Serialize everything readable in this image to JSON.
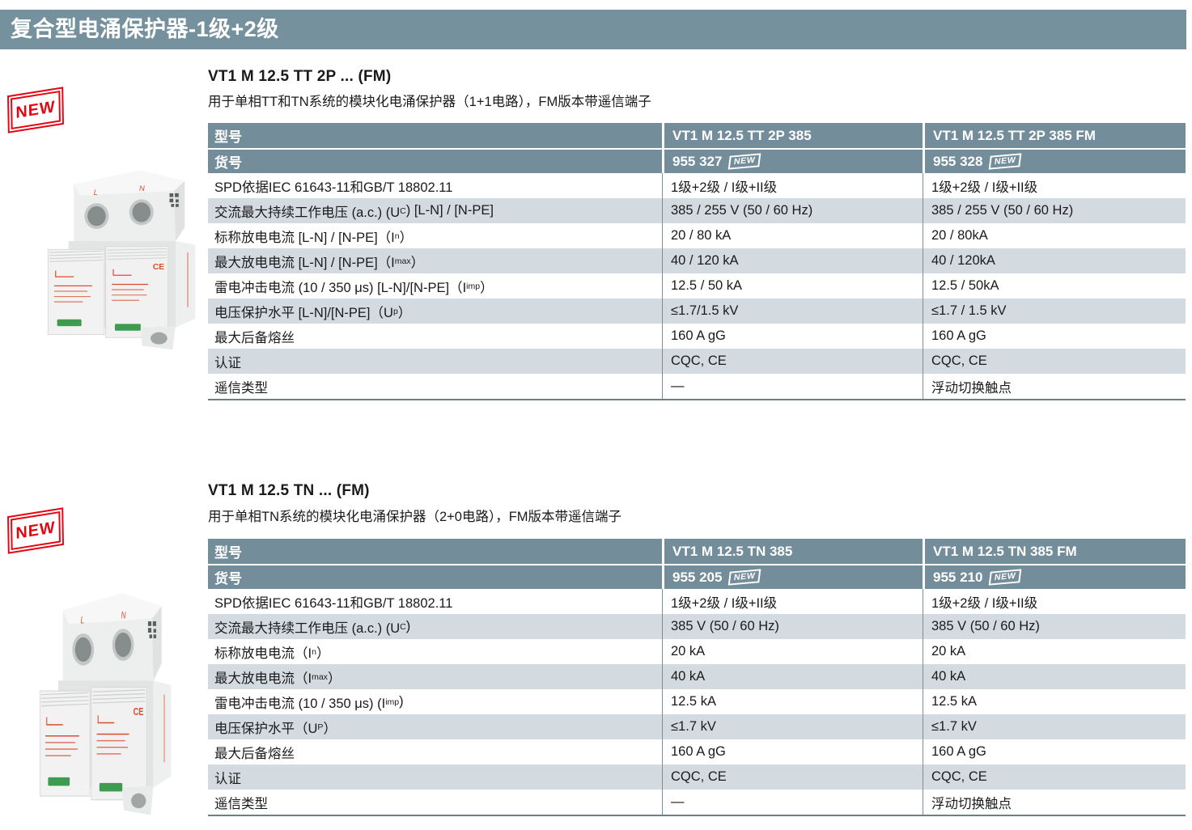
{
  "banner": "复合型电涌保护器-1级+2级",
  "colors": {
    "banner": "#76919E",
    "head": "#748D9A",
    "stripe": "#D4DBE0",
    "red": "#E30613",
    "border": "#6E7E88",
    "green": "#3F9B50",
    "devred": "#D9502F"
  },
  "sections": [
    {
      "new_badge": "NEW",
      "title": "VT1 M 12.5 TT 2P ... (FM)",
      "description": "用于单相TT和TN系统的模块化电涌保护器（1+1电路），FM版本带遥信端子",
      "photo": {
        "terminals": [
          "L",
          "N"
        ]
      },
      "table": {
        "model_row": {
          "label": "型号",
          "values": [
            "VT1 M 12.5 TT 2P 385",
            "VT1 M 12.5 TT 2P 385 FM"
          ]
        },
        "article_row": {
          "label": "货号",
          "values": [
            "955 327",
            "955 328"
          ],
          "badge": "NEW"
        },
        "rows": [
          {
            "label": [
              {
                "t": "SPD依据IEC 61643-11和GB/T 18802.11"
              }
            ],
            "values": [
              "1级+2级 / I级+II级",
              "1级+2级 / I级+II级"
            ]
          },
          {
            "label": [
              {
                "t": "交流最大持续工作电压 (a.c.)  (U"
              },
              {
                "sub": "C"
              },
              {
                "t": ") [L-N] / [N-PE]"
              }
            ],
            "values": [
              "385 / 255 V (50 / 60 Hz)",
              "385 / 255 V (50 / 60 Hz)"
            ]
          },
          {
            "label": [
              {
                "t": "标称放电电流 [L-N] / [N-PE]（I"
              },
              {
                "sub": "n"
              },
              {
                "t": "）"
              }
            ],
            "values": [
              "20 / 80 kA",
              "20 / 80kA"
            ]
          },
          {
            "label": [
              {
                "t": "最大放电电流 [L-N] / [N-PE]（I"
              },
              {
                "sub": "max"
              },
              {
                "t": "）"
              }
            ],
            "values": [
              "40 / 120 kA",
              "40 / 120kA"
            ]
          },
          {
            "label": [
              {
                "t": "雷电冲击电流 (10 / 350 μs) [L-N]/[N-PE]（I"
              },
              {
                "sub": "imp"
              },
              {
                "t": "）"
              }
            ],
            "values": [
              "12.5 / 50 kA",
              "12.5 / 50kA"
            ]
          },
          {
            "label": [
              {
                "t": "电压保护水平 [L-N]/[N-PE]（U"
              },
              {
                "sub": "p"
              },
              {
                "t": "）"
              }
            ],
            "values": [
              "≤1.7/1.5 kV",
              "≤1.7 / 1.5 kV"
            ]
          },
          {
            "label": [
              {
                "t": "最大后备熔丝"
              }
            ],
            "values": [
              "160 A gG",
              "160 A gG"
            ]
          },
          {
            "label": [
              {
                "t": "认证"
              }
            ],
            "values": [
              "CQC, CE",
              "CQC, CE"
            ]
          },
          {
            "label": [
              {
                "t": "遥信类型"
              }
            ],
            "values": [
              "—",
              "浮动切换触点"
            ]
          }
        ]
      }
    },
    {
      "new_badge": "NEW",
      "title": "VT1 M 12.5 TN ... (FM)",
      "description": "用于单相TN系统的模块化电涌保护器（2+0电路），FM版本带遥信端子",
      "photo": {
        "terminals": [
          "L",
          "N"
        ]
      },
      "table": {
        "model_row": {
          "label": "型号",
          "values": [
            "VT1 M 12.5 TN 385",
            "VT1 M 12.5 TN 385 FM"
          ]
        },
        "article_row": {
          "label": "货号",
          "values": [
            "955 205",
            "955 210"
          ],
          "badge": "NEW"
        },
        "rows": [
          {
            "label": [
              {
                "t": "SPD依据IEC 61643-11和GB/T 18802.11"
              }
            ],
            "values": [
              "1级+2级 / I级+II级",
              "1级+2级 / I级+II级"
            ]
          },
          {
            "label": [
              {
                "t": "交流最大持续工作电压 (a.c.)  (U"
              },
              {
                "sub": "C"
              },
              {
                "t": ")"
              }
            ],
            "values": [
              "385 V (50 / 60 Hz)",
              "385 V (50 / 60 Hz)"
            ]
          },
          {
            "label": [
              {
                "t": "标称放电电流（I"
              },
              {
                "sub": "n"
              },
              {
                "t": "）"
              }
            ],
            "values": [
              "20 kA",
              "20 kA"
            ]
          },
          {
            "label": [
              {
                "t": "最大放电电流（I"
              },
              {
                "sub": "max"
              },
              {
                "t": "）"
              }
            ],
            "values": [
              "40 kA",
              "40 kA"
            ]
          },
          {
            "label": [
              {
                "t": "雷电冲击电流 (10 / 350 μs) (I"
              },
              {
                "sub": "imp"
              },
              {
                "t": ")"
              }
            ],
            "values": [
              "12.5 kA",
              "12.5 kA"
            ]
          },
          {
            "label": [
              {
                "t": "电压保护水平（U"
              },
              {
                "sub": "P"
              },
              {
                "t": "）"
              }
            ],
            "values": [
              "≤1.7 kV",
              "≤1.7 kV"
            ]
          },
          {
            "label": [
              {
                "t": "最大后备熔丝"
              }
            ],
            "values": [
              "160 A gG",
              "160 A gG"
            ]
          },
          {
            "label": [
              {
                "t": "认证"
              }
            ],
            "values": [
              "CQC, CE",
              "CQC, CE"
            ]
          },
          {
            "label": [
              {
                "t": "遥信类型"
              }
            ],
            "values": [
              "—",
              "浮动切换触点"
            ]
          }
        ]
      }
    }
  ]
}
